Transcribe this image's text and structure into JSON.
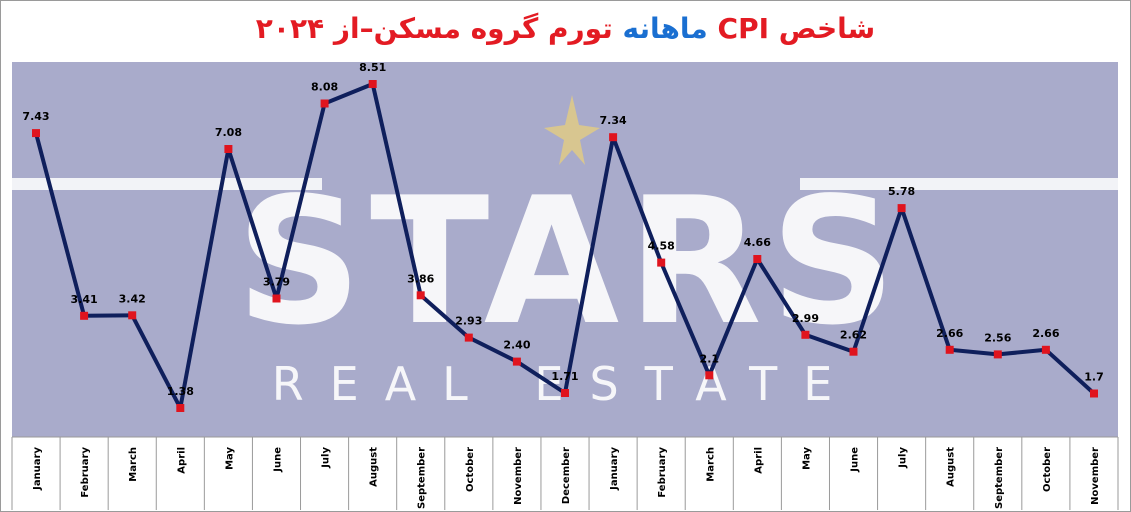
{
  "title": {
    "part_prefix": "شاخص ",
    "part_cpi": "CPI",
    "part_monthly": " ماهانه ",
    "part_rest": "تورم گروه مسکن–از ۲۰۲۴"
  },
  "watermark": {
    "main": "STARS",
    "sub": "REAL ESTATE"
  },
  "colors": {
    "plot_bg": "#a9abcb",
    "line": "#0f1f5c",
    "marker": "#e0141e",
    "title_red": "#e31b23",
    "title_blue": "#1a6fd1",
    "star": "#d8c690"
  },
  "chart_data": {
    "type": "line",
    "title": "شاخص CPI ماهانه تورم گروه مسکن–از ۲۰۲۴",
    "xlabel": "",
    "ylabel": "",
    "categories": [
      "January",
      "February",
      "March",
      "April",
      "May",
      "June",
      "July",
      "August",
      "September",
      "October",
      "November",
      "December",
      "January",
      "February",
      "March",
      "April",
      "May",
      "June",
      "July",
      "August",
      "September",
      "October",
      "November"
    ],
    "series": [
      {
        "values": [
          7.43,
          3.41,
          3.42,
          1.38,
          7.08,
          3.79,
          8.08,
          8.51,
          3.86,
          2.93,
          2.4,
          1.71,
          7.34,
          4.58,
          2.1,
          4.66,
          2.99,
          2.62,
          5.78,
          2.66,
          2.56,
          2.66,
          1.7
        ],
        "labels": [
          "7.43",
          "3.41",
          "3.42",
          "1.38",
          "7.08",
          "3.79",
          "8.08",
          "8.51",
          "3.86",
          "2.93",
          "2.40",
          "1.71",
          "7.34",
          "4.58",
          "2.1",
          "4.66",
          "2.99",
          "2.62",
          "5.78",
          "2.66",
          "2.56",
          "2.66",
          "1.7"
        ]
      }
    ],
    "ylim": [
      0,
      9
    ],
    "grid": false,
    "legend": "none"
  }
}
